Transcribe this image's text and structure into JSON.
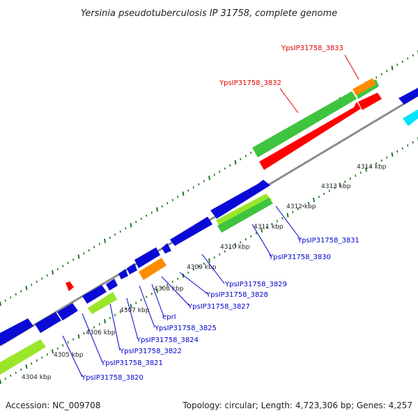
{
  "title": "Yersinia pseudotuberculosis IP 31758, complete genome",
  "footer": {
    "accession": "Accession: NC_009708",
    "summary": "Topology: circular; Length: 4,723,306 bp; Genes: 4,257"
  },
  "colors": {
    "backbone": "#8c8c8c",
    "tick_dots": "#1e7a1e",
    "blue_gene": "#0a0ad6",
    "cyan_gene": "#00e5ff",
    "green_gene": "#3ec43e",
    "light_green_gene": "#9ae62a",
    "red_gene": "#ff0000",
    "orange_gene": "#ff8c00",
    "label_blue": "#0000cc",
    "label_red": "#dd0000"
  },
  "kbp_markers": [
    "4304 kbp",
    "4305 kbp",
    "4306 kbp",
    "4307 kbp",
    "4308 kbp",
    "4309 kbp",
    "4310 kbp",
    "4311 kbp",
    "4312 kbp",
    "4313 kbp",
    "4314 kbp"
  ],
  "gene_labels": [
    {
      "name": "YpsIP31758_3833",
      "color": "red"
    },
    {
      "name": "YpsIP31758_3832",
      "color": "red"
    },
    {
      "name": "YpsIP31758_3831",
      "color": "blue"
    },
    {
      "name": "YpsIP31758_3830",
      "color": "blue"
    },
    {
      "name": "YpsIP31758_3829",
      "color": "blue"
    },
    {
      "name": "YpsIP31758_3828",
      "color": "blue"
    },
    {
      "name": "YpsIP31758_3827",
      "color": "blue"
    },
    {
      "name": "eprI",
      "color": "blue"
    },
    {
      "name": "YpsIP31758_3825",
      "color": "blue"
    },
    {
      "name": "YpsIP31758_3824",
      "color": "blue"
    },
    {
      "name": "YpsIP31758_3822",
      "color": "blue"
    },
    {
      "name": "YpsIP31758_3821",
      "color": "blue"
    },
    {
      "name": "YpsIP31758_3820",
      "color": "blue"
    }
  ]
}
